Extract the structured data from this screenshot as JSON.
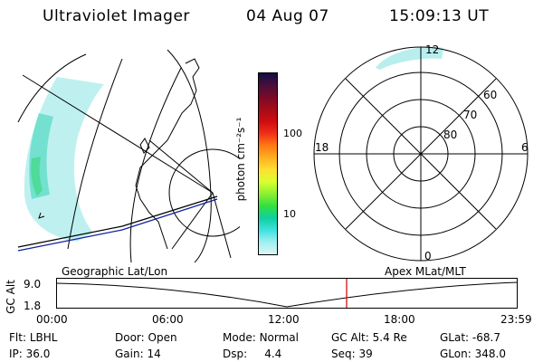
{
  "header": {
    "title": "Ultraviolet Imager",
    "date": "04 Aug 07",
    "time": "15:09:13 UT"
  },
  "colorbar": {
    "label": "photon cm⁻²s⁻¹",
    "ticks": [
      "100",
      "10"
    ],
    "colors": [
      "#101040",
      "#4a0e3c",
      "#7a0a26",
      "#a50c17",
      "#d00c10",
      "#f0301a",
      "#ff7a14",
      "#ffb020",
      "#ffe030",
      "#d8ff30",
      "#8cf030",
      "#30e040",
      "#10d0a0",
      "#40e0e0",
      "#a0f0f0",
      "#e0f4f4"
    ]
  },
  "polar": {
    "lat_labels": [
      "60",
      "70",
      "80"
    ],
    "mlt_labels": {
      "top": "12",
      "left": "18",
      "right": "6",
      "bottom": "0"
    }
  },
  "timeline": {
    "y_axis_label": "GC Alt",
    "y_ticks": [
      "9.0",
      "1.8"
    ],
    "left_caption": "Geographic Lat/Lon",
    "right_caption": "Apex MLat/MLT",
    "x_ticks": [
      "00:00",
      "06:00",
      "12:00",
      "18:00",
      "23:59"
    ],
    "marker_color": "#d01010"
  },
  "status": {
    "row1": [
      {
        "k": "Flt:",
        "v": "LBHL"
      },
      {
        "k": "Door:",
        "v": "Open"
      },
      {
        "k": "Mode:",
        "v": "Normal"
      },
      {
        "k": "GC Alt:",
        "v": "5.4 Re"
      },
      {
        "k": "GLat:",
        "v": "-68.7"
      }
    ],
    "row2": [
      {
        "k": "IP:",
        "v": "36.0"
      },
      {
        "k": "Gain:",
        "v": "14"
      },
      {
        "k": "Dsp:",
        "v": "4.4"
      },
      {
        "k": "Seq:",
        "v": "39"
      },
      {
        "k": "GLon:",
        "v": "348.0"
      }
    ]
  }
}
